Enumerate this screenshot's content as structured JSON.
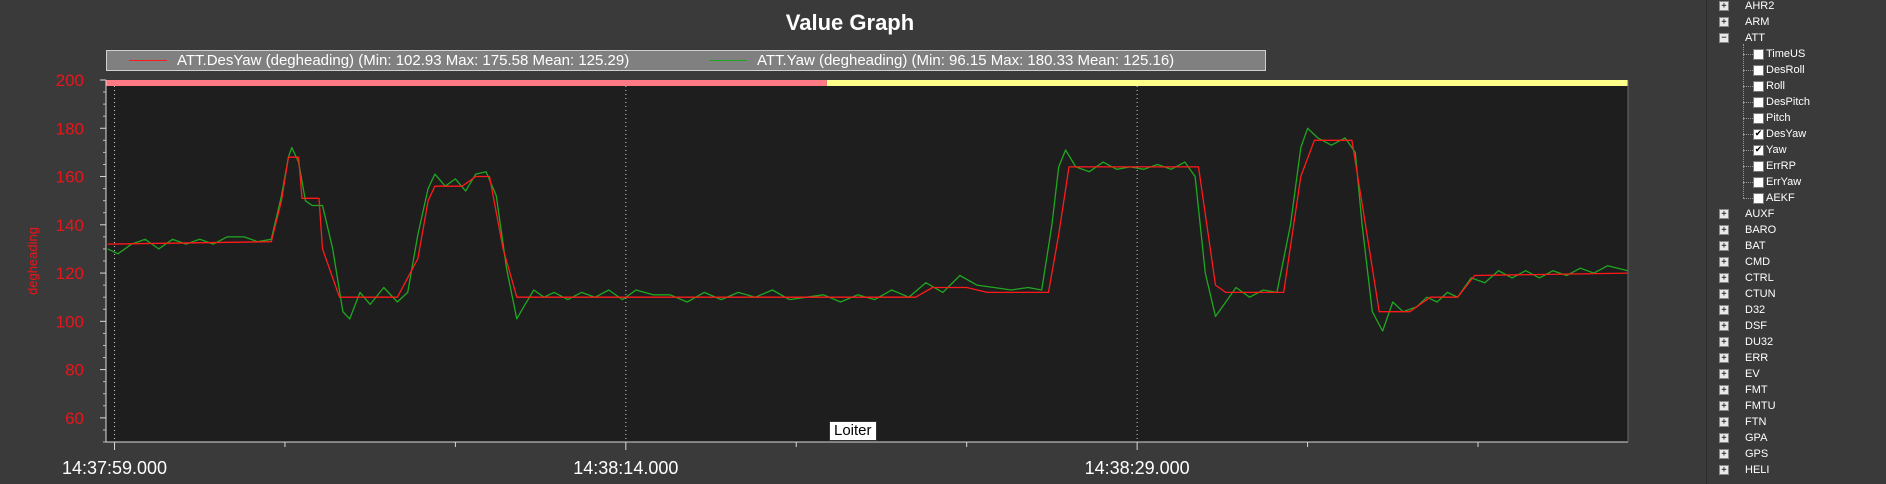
{
  "window": {
    "title": "Value Graph"
  },
  "mode_label": "Loiter",
  "colors": {
    "background": "#3a3a3a",
    "plot_background": "#1e1e1e",
    "axis_text": "#e8161c",
    "series_desyaw": "#ff1a1a",
    "series_yaw": "#1ea81e",
    "mode_bar_1": "#ff7a85",
    "mode_bar_2": "#ffff8a"
  },
  "chart_data": {
    "type": "line",
    "title": "Value Graph",
    "ylabel": "degheading",
    "xlabel": "",
    "ylim": [
      50,
      200
    ],
    "xlim": [
      -0.25,
      44.4
    ],
    "y_ticks": [
      60,
      80,
      100,
      120,
      140,
      160,
      180,
      200
    ],
    "x_major_ticks": [
      {
        "t": 0,
        "label": "14:37:59.000"
      },
      {
        "t": 15,
        "label": "14:38:14.000"
      },
      {
        "t": 30,
        "label": "14:38:29.000"
      }
    ],
    "x_minor_ticks": [
      5,
      10,
      20,
      25,
      35,
      40
    ],
    "grid": "vertical dotted at major ticks",
    "legend_position": "top-left",
    "mode_bands": [
      {
        "mode": "",
        "start": -0.25,
        "end": 20.9,
        "color": "#ff7a85"
      },
      {
        "mode": "Loiter",
        "start": 20.9,
        "end": 44.4,
        "color": "#ffff8a"
      }
    ],
    "series": [
      {
        "name": "ATT.DesYaw (degheading) (Min: 102.93 Max: 175.58 Mean: 125.29)",
        "color": "#ff1a1a",
        "points": [
          [
            -0.2,
            132
          ],
          [
            4.6,
            133
          ],
          [
            4.9,
            150
          ],
          [
            5.1,
            168
          ],
          [
            5.4,
            168
          ],
          [
            5.5,
            151
          ],
          [
            6.0,
            151
          ],
          [
            6.1,
            130
          ],
          [
            6.6,
            110
          ],
          [
            8.3,
            110
          ],
          [
            8.9,
            126
          ],
          [
            9.2,
            150
          ],
          [
            9.4,
            156
          ],
          [
            10.2,
            156
          ],
          [
            10.6,
            160
          ],
          [
            11.0,
            160
          ],
          [
            11.4,
            130
          ],
          [
            11.8,
            110
          ],
          [
            20.0,
            110
          ],
          [
            23.5,
            110
          ],
          [
            24.0,
            114
          ],
          [
            25.0,
            114
          ],
          [
            25.6,
            112
          ],
          [
            27.4,
            112
          ],
          [
            27.7,
            136
          ],
          [
            28.0,
            164
          ],
          [
            31.8,
            164
          ],
          [
            32.3,
            115
          ],
          [
            32.6,
            112
          ],
          [
            34.3,
            112
          ],
          [
            34.8,
            160
          ],
          [
            35.2,
            175
          ],
          [
            36.3,
            175
          ],
          [
            36.7,
            140
          ],
          [
            37.1,
            104
          ],
          [
            38.0,
            104
          ],
          [
            38.6,
            110
          ],
          [
            39.4,
            110
          ],
          [
            39.9,
            119
          ],
          [
            44.4,
            120
          ]
        ]
      },
      {
        "name": "ATT.Yaw (degheading) (Min: 96.15 Max: 180.33 Mean: 125.16)",
        "color": "#1ea81e",
        "points": [
          [
            -0.2,
            130
          ],
          [
            0.1,
            128
          ],
          [
            0.5,
            132
          ],
          [
            0.9,
            134
          ],
          [
            1.3,
            130
          ],
          [
            1.7,
            134
          ],
          [
            2.1,
            132
          ],
          [
            2.5,
            134
          ],
          [
            2.9,
            132
          ],
          [
            3.3,
            135
          ],
          [
            3.8,
            135
          ],
          [
            4.2,
            133
          ],
          [
            4.6,
            134
          ],
          [
            4.9,
            152
          ],
          [
            5.1,
            168
          ],
          [
            5.2,
            172
          ],
          [
            5.4,
            166
          ],
          [
            5.6,
            150
          ],
          [
            5.8,
            148
          ],
          [
            6.1,
            148
          ],
          [
            6.4,
            130
          ],
          [
            6.7,
            104
          ],
          [
            6.9,
            101
          ],
          [
            7.2,
            112
          ],
          [
            7.5,
            107
          ],
          [
            7.9,
            114
          ],
          [
            8.3,
            108
          ],
          [
            8.6,
            112
          ],
          [
            8.9,
            136
          ],
          [
            9.2,
            155
          ],
          [
            9.4,
            161
          ],
          [
            9.7,
            156
          ],
          [
            10.0,
            159
          ],
          [
            10.3,
            154
          ],
          [
            10.6,
            161
          ],
          [
            10.9,
            162
          ],
          [
            11.2,
            152
          ],
          [
            11.5,
            122
          ],
          [
            11.8,
            101
          ],
          [
            12.0,
            106
          ],
          [
            12.3,
            113
          ],
          [
            12.6,
            110
          ],
          [
            12.9,
            112
          ],
          [
            13.3,
            109
          ],
          [
            13.7,
            112
          ],
          [
            14.1,
            110
          ],
          [
            14.5,
            113
          ],
          [
            14.9,
            109
          ],
          [
            15.3,
            113
          ],
          [
            15.8,
            111
          ],
          [
            16.3,
            111
          ],
          [
            16.8,
            108
          ],
          [
            17.3,
            112
          ],
          [
            17.8,
            109
          ],
          [
            18.3,
            112
          ],
          [
            18.8,
            110
          ],
          [
            19.3,
            113
          ],
          [
            19.8,
            109
          ],
          [
            20.3,
            110
          ],
          [
            20.8,
            111
          ],
          [
            21.3,
            108
          ],
          [
            21.8,
            111
          ],
          [
            22.3,
            109
          ],
          [
            22.8,
            113
          ],
          [
            23.3,
            110
          ],
          [
            23.8,
            116
          ],
          [
            24.3,
            112
          ],
          [
            24.8,
            119
          ],
          [
            25.3,
            115
          ],
          [
            25.8,
            114
          ],
          [
            26.3,
            113
          ],
          [
            26.8,
            114
          ],
          [
            27.2,
            113
          ],
          [
            27.5,
            140
          ],
          [
            27.7,
            164
          ],
          [
            27.9,
            171
          ],
          [
            28.2,
            164
          ],
          [
            28.6,
            162
          ],
          [
            29.0,
            166
          ],
          [
            29.4,
            163
          ],
          [
            29.8,
            164
          ],
          [
            30.2,
            163
          ],
          [
            30.6,
            165
          ],
          [
            31.0,
            163
          ],
          [
            31.4,
            166
          ],
          [
            31.7,
            160
          ],
          [
            32.0,
            120
          ],
          [
            32.3,
            102
          ],
          [
            32.6,
            108
          ],
          [
            32.9,
            114
          ],
          [
            33.3,
            110
          ],
          [
            33.7,
            113
          ],
          [
            34.1,
            112
          ],
          [
            34.5,
            140
          ],
          [
            34.8,
            172
          ],
          [
            35.0,
            180
          ],
          [
            35.3,
            176
          ],
          [
            35.7,
            173
          ],
          [
            36.1,
            176
          ],
          [
            36.4,
            170
          ],
          [
            36.6,
            140
          ],
          [
            36.9,
            104
          ],
          [
            37.2,
            96
          ],
          [
            37.5,
            108
          ],
          [
            37.8,
            104
          ],
          [
            38.2,
            106
          ],
          [
            38.5,
            110
          ],
          [
            38.8,
            108
          ],
          [
            39.1,
            112
          ],
          [
            39.4,
            110
          ],
          [
            39.8,
            118
          ],
          [
            40.2,
            116
          ],
          [
            40.6,
            121
          ],
          [
            41.0,
            118
          ],
          [
            41.4,
            121
          ],
          [
            41.8,
            118
          ],
          [
            42.2,
            121
          ],
          [
            42.6,
            119
          ],
          [
            43.0,
            122
          ],
          [
            43.4,
            120
          ],
          [
            43.8,
            123
          ],
          [
            44.1,
            122
          ],
          [
            44.4,
            121
          ]
        ]
      }
    ]
  },
  "legend": [
    {
      "label": "ATT.DesYaw (degheading) (Min: 102.93 Max: 175.58 Mean: 125.29)",
      "color": "#ff1a1a"
    },
    {
      "label": "ATT.Yaw (degheading) (Min: 96.15 Max: 180.33 Mean: 125.16)",
      "color": "#1ea81e"
    }
  ],
  "tree": {
    "top_items_before": [
      "AHR2",
      "ARM"
    ],
    "expanded_item": "ATT",
    "children": [
      {
        "label": "TimeUS",
        "checked": false
      },
      {
        "label": "DesRoll",
        "checked": false
      },
      {
        "label": "Roll",
        "checked": false
      },
      {
        "label": "DesPitch",
        "checked": false
      },
      {
        "label": "Pitch",
        "checked": false
      },
      {
        "label": "DesYaw",
        "checked": true
      },
      {
        "label": "Yaw",
        "checked": true
      },
      {
        "label": "ErrRP",
        "checked": false
      },
      {
        "label": "ErrYaw",
        "checked": false
      },
      {
        "label": "AEKF",
        "checked": false
      }
    ],
    "items_after": [
      "AUXF",
      "BARO",
      "BAT",
      "CMD",
      "CTRL",
      "CTUN",
      "D32",
      "DSF",
      "DU32",
      "ERR",
      "EV",
      "FMT",
      "FMTU",
      "FTN",
      "GPA",
      "GPS",
      "HELI"
    ],
    "expand_glyph": "+",
    "collapse_glyph": "−",
    "check_glyph": "✔"
  }
}
